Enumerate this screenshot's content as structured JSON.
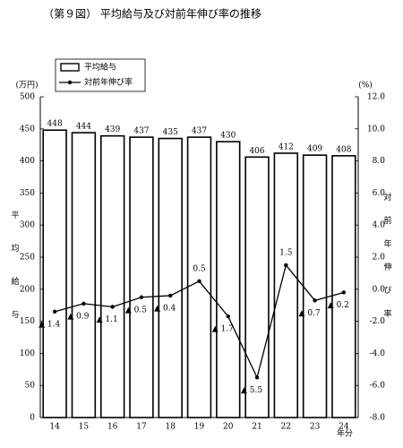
{
  "chart_data": {
    "type": "bar",
    "title": "（第９図） 平均給与及び対前年伸び率の推移",
    "categories": [
      "14",
      "15",
      "16",
      "17",
      "18",
      "19",
      "20",
      "21",
      "22",
      "23",
      "24"
    ],
    "x_unit": "年分",
    "ylabel": "平均給与",
    "y_unit": "(万円)",
    "y2label": "対前年伸び率",
    "y2_unit": "(%)",
    "ylim": [
      0,
      500
    ],
    "yticks": [
      0,
      50,
      100,
      150,
      200,
      250,
      300,
      350,
      400,
      450,
      500
    ],
    "y2lim": [
      -8,
      12
    ],
    "y2ticks": [
      {
        "value": 12,
        "label": "12.0"
      },
      {
        "value": 10,
        "label": "10.0"
      },
      {
        "value": 8,
        "label": "8.0"
      },
      {
        "value": 6,
        "label": "6.0"
      },
      {
        "value": 4,
        "label": "4.0"
      },
      {
        "value": 2,
        "label": "2.0"
      },
      {
        "value": 0,
        "label": "0.0"
      },
      {
        "value": -2,
        "label": "-2.0"
      },
      {
        "value": -4,
        "label": "-4.0"
      },
      {
        "value": -6,
        "label": "-6.0"
      },
      {
        "value": -8,
        "label": "-8.0"
      }
    ],
    "series": [
      {
        "name": "平均給与",
        "type": "bar",
        "color": "#ffffff",
        "values": [
          448,
          444,
          439,
          437,
          435,
          437,
          430,
          406,
          412,
          409,
          408
        ]
      },
      {
        "name": "対前年伸び率",
        "type": "line",
        "axis": "y2",
        "color": "#000000",
        "values": [
          -1.4,
          -0.9,
          -1.1,
          -0.5,
          -0.4,
          0.5,
          -1.7,
          -5.5,
          1.5,
          -0.7,
          -0.2
        ],
        "value_labels": [
          "▲ 1.4",
          "▲ 0.9",
          "▲ 1.1",
          "▲ 0.5",
          "▲ 0.4",
          "0.5",
          "▲ 1.7",
          "▲ 5.5",
          "1.5",
          "▲ 0.7",
          "▲ 0.2"
        ]
      }
    ]
  }
}
